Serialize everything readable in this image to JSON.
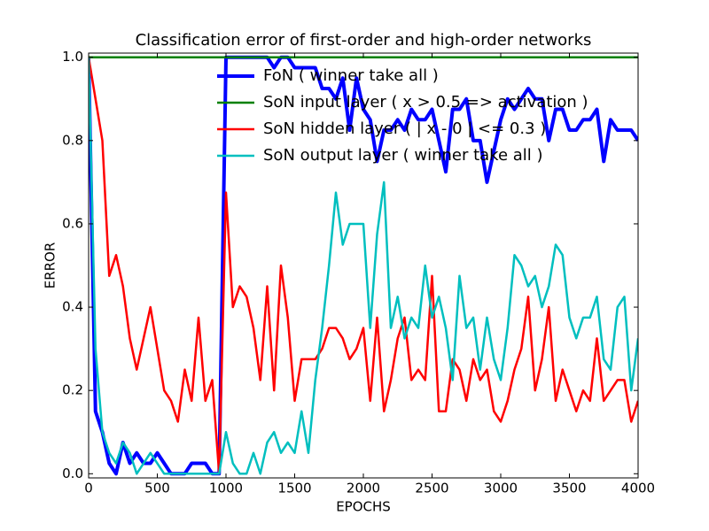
{
  "chart_data": {
    "type": "line",
    "title": "Classification error of first-order and high-order networks",
    "xlabel": "EPOCHS",
    "ylabel": "ERROR",
    "xlim": [
      0,
      4000
    ],
    "ylim": [
      -0.01,
      1.01
    ],
    "xticks": [
      0,
      500,
      1000,
      1500,
      2000,
      2500,
      3000,
      3500,
      4000
    ],
    "yticks": [
      {
        "value": 0,
        "label": "0.0"
      },
      0.2,
      0.4,
      0.6,
      0.8,
      {
        "value": 1,
        "label": "1.0"
      }
    ],
    "legend": "upper center",
    "x": [
      0,
      50,
      100,
      150,
      200,
      250,
      300,
      350,
      400,
      450,
      500,
      550,
      600,
      650,
      700,
      750,
      800,
      850,
      900,
      950,
      1000,
      1050,
      1100,
      1150,
      1200,
      1250,
      1300,
      1350,
      1400,
      1450,
      1500,
      1550,
      1600,
      1650,
      1700,
      1750,
      1800,
      1850,
      1900,
      1950,
      2000,
      2050,
      2100,
      2150,
      2200,
      2250,
      2300,
      2350,
      2400,
      2450,
      2500,
      2550,
      2600,
      2650,
      2700,
      2750,
      2800,
      2850,
      2900,
      2950,
      3000,
      3050,
      3100,
      3150,
      3200,
      3250,
      3300,
      3350,
      3400,
      3450,
      3500,
      3550,
      3600,
      3650,
      3700,
      3750,
      3800,
      3850,
      3900,
      3950,
      4000
    ],
    "series": [
      {
        "name": "FoN ( winner take all )",
        "color": "#0000ff",
        "width": 4,
        "values": [
          1.0,
          0.15,
          0.1,
          0.025,
          0,
          0.075,
          0.025,
          0.05,
          0.025,
          0.025,
          0.05,
          0.025,
          0,
          0,
          0,
          0.025,
          0.025,
          0.025,
          0,
          0,
          1.0,
          1.0,
          1.0,
          1.0,
          1.0,
          1.0,
          1.0,
          0.975,
          1.0,
          1.0,
          0.975,
          0.975,
          0.975,
          0.975,
          0.925,
          0.925,
          0.9,
          0.95,
          0.825,
          0.95,
          0.875,
          0.85,
          0.75,
          0.825,
          0.825,
          0.85,
          0.825,
          0.875,
          0.85,
          0.85,
          0.875,
          0.8,
          0.725,
          0.875,
          0.875,
          0.9,
          0.8,
          0.8,
          0.7,
          0.775,
          0.85,
          0.9,
          0.875,
          0.9,
          0.925,
          0.9,
          0.9,
          0.8,
          0.875,
          0.875,
          0.825,
          0.825,
          0.85,
          0.85,
          0.875,
          0.75,
          0.85,
          0.825,
          0.825,
          0.825,
          0.8
        ]
      },
      {
        "name": "SoN input layer ( x > 0.5 => activation )",
        "color": "#008000",
        "width": 2.5,
        "values": [
          1,
          1,
          1,
          1,
          1,
          1,
          1,
          1,
          1,
          1,
          1,
          1,
          1,
          1,
          1,
          1,
          1,
          1,
          1,
          1,
          1,
          1,
          1,
          1,
          1,
          1,
          1,
          1,
          1,
          1,
          1,
          1,
          1,
          1,
          1,
          1,
          1,
          1,
          1,
          1,
          1,
          1,
          1,
          1,
          1,
          1,
          1,
          1,
          1,
          1,
          1,
          1,
          1,
          1,
          1,
          1,
          1,
          1,
          1,
          1,
          1,
          1,
          1,
          1,
          1,
          1,
          1,
          1,
          1,
          1,
          1,
          1,
          1,
          1,
          1,
          1,
          1,
          1,
          1,
          1,
          1
        ]
      },
      {
        "name": "SoN hidden layer ( | x - 0 | <= 0.3 )",
        "color": "#ff0000",
        "width": 2.5,
        "values": [
          1.0,
          0.9,
          0.8,
          0.475,
          0.525,
          0.45,
          0.325,
          0.25,
          0.325,
          0.4,
          0.3,
          0.2,
          0.175,
          0.125,
          0.25,
          0.175,
          0.375,
          0.175,
          0.225,
          0.0,
          0.675,
          0.4,
          0.45,
          0.425,
          0.35,
          0.225,
          0.45,
          0.2,
          0.5,
          0.375,
          0.175,
          0.275,
          0.275,
          0.275,
          0.3,
          0.35,
          0.35,
          0.325,
          0.275,
          0.3,
          0.35,
          0.175,
          0.375,
          0.15,
          0.225,
          0.325,
          0.375,
          0.225,
          0.25,
          0.225,
          0.475,
          0.15,
          0.15,
          0.275,
          0.25,
          0.175,
          0.275,
          0.225,
          0.25,
          0.15,
          0.125,
          0.175,
          0.25,
          0.3,
          0.425,
          0.2,
          0.275,
          0.4,
          0.175,
          0.25,
          0.2,
          0.15,
          0.2,
          0.175,
          0.325,
          0.175,
          0.2,
          0.225,
          0.225,
          0.125,
          0.175
        ]
      },
      {
        "name": "SoN output layer ( winner take all )",
        "color": "#00bfbf",
        "width": 2.5,
        "values": [
          1.0,
          0.3,
          0.1,
          0.05,
          0.025,
          0.075,
          0.05,
          0.0,
          0.025,
          0.05,
          0.025,
          0,
          0,
          0,
          0,
          0,
          0,
          0,
          0,
          0,
          0.1,
          0.025,
          0,
          0,
          0.05,
          0,
          0.075,
          0.1,
          0.05,
          0.075,
          0.05,
          0.15,
          0.05,
          0.225,
          0.35,
          0.5,
          0.675,
          0.55,
          0.6,
          0.6,
          0.6,
          0.35,
          0.575,
          0.7,
          0.35,
          0.425,
          0.325,
          0.375,
          0.35,
          0.5,
          0.375,
          0.425,
          0.35,
          0.225,
          0.475,
          0.35,
          0.375,
          0.25,
          0.375,
          0.275,
          0.225,
          0.35,
          0.525,
          0.5,
          0.45,
          0.475,
          0.4,
          0.45,
          0.55,
          0.525,
          0.375,
          0.325,
          0.375,
          0.375,
          0.425,
          0.275,
          0.25,
          0.4,
          0.425,
          0.2,
          0.325
        ]
      }
    ]
  }
}
